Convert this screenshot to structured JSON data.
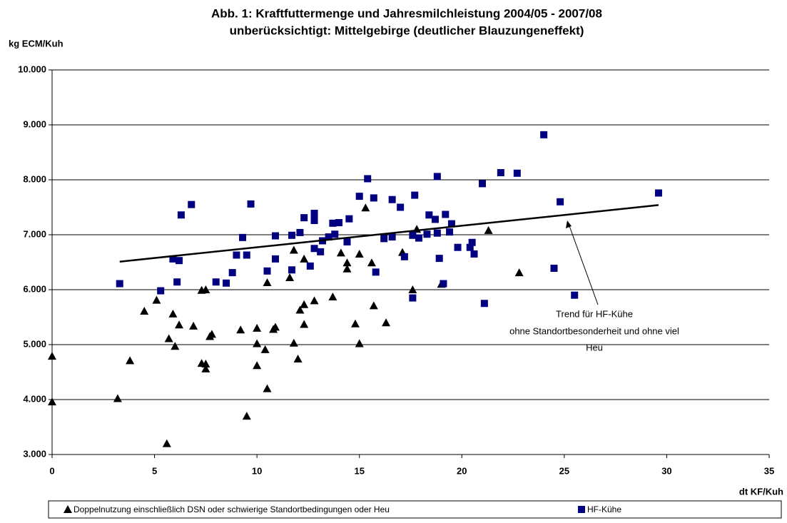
{
  "chart_data": {
    "type": "scatter",
    "title": [
      "Abb. 1: Kraftfuttermenge und Jahresmilchleistung 2004/05 - 2007/08",
      "unberücksichtigt: Mittelgebirge (deutlicher Blauzungeneffekt)"
    ],
    "y_label": "kg  ECM/Kuh",
    "x_label": "dt KF/Kuh",
    "xlim": [
      0,
      35
    ],
    "xticks": [
      0,
      5,
      10,
      15,
      20,
      25,
      30,
      35
    ],
    "ylim": [
      3000,
      10000
    ],
    "yticks": [
      {
        "value": 3000,
        "label": "3.000"
      },
      {
        "value": 4000,
        "label": "4.000"
      },
      {
        "value": 5000,
        "label": "5.000"
      },
      {
        "value": 6000,
        "label": "6.000"
      },
      {
        "value": 7000,
        "label": "7.000"
      },
      {
        "value": 8000,
        "label": "8.000"
      },
      {
        "value": 9000,
        "label": "9.000"
      },
      {
        "value": 10000,
        "label": "10.000"
      }
    ],
    "grid": true,
    "legend": "bottom",
    "series": [
      {
        "name": "Doppelnutzung einschließlich DSN oder schwierige Standortbedingungen oder Heu",
        "color": "#000000",
        "marker": "triangle",
        "x": [
          0,
          0,
          3.2,
          3.8,
          4.5,
          5.1,
          5.6,
          5.7,
          5.9,
          6.0,
          6.2,
          6.9,
          7.3,
          7.5,
          7.3,
          7.5,
          7.5,
          7.7,
          7.8,
          9.2,
          9.5,
          10.0,
          10.0,
          10.0,
          10.4,
          10.5,
          10.5,
          10.8,
          10.9,
          11.6,
          11.8,
          11.8,
          12.0,
          12.1,
          12.3,
          12.3,
          12.3,
          12.8,
          13.7,
          14.1,
          14.4,
          14.4,
          14.8,
          15.0,
          15.0,
          15.3,
          15.6,
          15.7,
          16.3,
          17.1,
          17.6,
          17.8,
          19.0,
          21.3,
          22.8
        ],
        "y": [
          4790,
          3960,
          4020,
          4710,
          5610,
          5810,
          3200,
          5110,
          5560,
          4970,
          5360,
          5340,
          5990,
          6000,
          4660,
          4650,
          4560,
          5150,
          5190,
          5270,
          3700,
          5300,
          5020,
          4620,
          4910,
          6130,
          4200,
          5280,
          5320,
          6220,
          6720,
          5030,
          4740,
          5630,
          5730,
          6560,
          5370,
          5800,
          5870,
          6670,
          6490,
          6380,
          5380,
          6650,
          5020,
          7490,
          6490,
          5710,
          5400,
          6680,
          6000,
          7100,
          6100,
          7080,
          6310
        ]
      },
      {
        "name": "HF-Kühe",
        "color": "#000080",
        "marker": "square",
        "x": [
          3.3,
          5.3,
          5.9,
          6.1,
          6.2,
          6.3,
          6.8,
          8.0,
          8.5,
          8.8,
          9.0,
          9.3,
          9.5,
          9.7,
          10.5,
          10.9,
          10.9,
          11.7,
          11.7,
          12.1,
          12.3,
          12.6,
          12.8,
          12.8,
          12.8,
          13.1,
          13.2,
          13.5,
          13.7,
          13.8,
          14.0,
          14.4,
          14.5,
          15.0,
          15.4,
          15.7,
          15.8,
          16.2,
          16.6,
          16.6,
          17.0,
          17.2,
          17.6,
          17.6,
          17.7,
          17.9,
          18.3,
          18.4,
          18.7,
          18.8,
          18.8,
          18.9,
          19.1,
          19.2,
          19.4,
          19.5,
          19.8,
          20.4,
          20.5,
          20.6,
          21.0,
          21.1,
          21.9,
          22.7,
          24.0,
          24.5,
          24.8,
          25.5,
          29.6
        ],
        "y": [
          6110,
          5980,
          6560,
          6140,
          6530,
          7360,
          7550,
          6140,
          6120,
          6310,
          6630,
          6950,
          6630,
          7560,
          6340,
          6980,
          6560,
          6360,
          6990,
          7040,
          7310,
          6430,
          7390,
          7260,
          6750,
          6690,
          6890,
          6960,
          7210,
          7010,
          7220,
          6870,
          7290,
          7700,
          8020,
          7670,
          6320,
          6930,
          7640,
          6960,
          7500,
          6600,
          5850,
          6990,
          7720,
          6940,
          7010,
          7360,
          7280,
          8060,
          7030,
          6570,
          6110,
          7370,
          7050,
          7200,
          6770,
          6770,
          6860,
          6650,
          7930,
          5750,
          8130,
          8120,
          8820,
          6390,
          7600,
          5900,
          7760
        ]
      }
    ],
    "trend": {
      "color": "#000000",
      "x": [
        3.3,
        29.6
      ],
      "y": [
        6510,
        7540
      ]
    },
    "annotation": [
      "Trend für HF-Kühe",
      "ohne Standortbesonderheit und ohne viel",
      "Heu"
    ]
  }
}
